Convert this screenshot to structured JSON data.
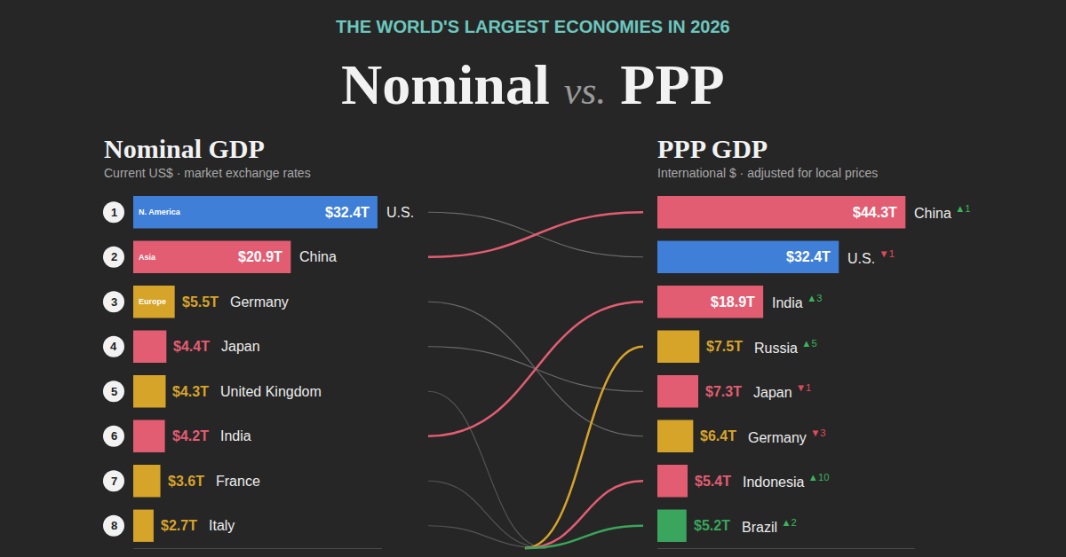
{
  "header": {
    "kicker": "THE WORLD'S LARGEST ECONOMIES IN 2026",
    "title_left": "Nominal",
    "title_middle": "vs.",
    "title_right": "PPP"
  },
  "chart_data": [
    {
      "type": "bar",
      "orientation": "horizontal",
      "title": "Nominal GDP",
      "subtitle": "Current US$ · market exchange rates",
      "categories": [
        "U.S.",
        "China",
        "Germany",
        "Japan",
        "United Kingdom",
        "India",
        "France",
        "Italy"
      ],
      "values": [
        32.4,
        20.9,
        5.5,
        4.4,
        4.3,
        4.2,
        3.6,
        2.7
      ],
      "value_labels": [
        "$32.4T",
        "$20.9T",
        "$5.5T",
        "$4.4T",
        "$4.3T",
        "$4.2T",
        "$3.6T",
        "$2.7T"
      ],
      "ranks": [
        1,
        2,
        3,
        4,
        5,
        6,
        7,
        8
      ],
      "region_labels": [
        "N. America",
        "Asia",
        "Europe",
        null,
        null,
        null,
        null,
        null
      ],
      "colors": [
        "#3f7fd8",
        "#e35d72",
        "#d7a42a",
        "#e35d72",
        "#d7a42a",
        "#e35d72",
        "#d7a42a",
        "#d7a42a"
      ],
      "xlim": [
        0,
        33
      ],
      "xticks": [],
      "tick_labels": false,
      "grid": false,
      "data_labels": true
    },
    {
      "type": "bar",
      "orientation": "horizontal",
      "title": "PPP GDP",
      "subtitle": "International $ · adjusted for local prices",
      "categories": [
        "China",
        "U.S.",
        "India",
        "Russia",
        "Japan",
        "Germany",
        "Indonesia",
        "Brazil"
      ],
      "values": [
        44.3,
        32.4,
        18.9,
        7.5,
        7.3,
        6.4,
        5.4,
        5.2
      ],
      "value_labels": [
        "$44.3T",
        "$32.4T",
        "$18.9T",
        "$7.5T",
        "$7.3T",
        "$6.4T",
        "$5.4T",
        "$5.2T"
      ],
      "rank_changes": [
        1,
        -1,
        3,
        5,
        -1,
        -3,
        10,
        2
      ],
      "colors": [
        "#e35d72",
        "#3f7fd8",
        "#e35d72",
        "#d7a42a",
        "#e35d72",
        "#d7a42a",
        "#e35d72",
        "#3aa55c"
      ],
      "xlim": [
        0,
        46
      ],
      "xticks": [],
      "tick_labels": false,
      "grid": false,
      "data_labels": true
    }
  ]
}
